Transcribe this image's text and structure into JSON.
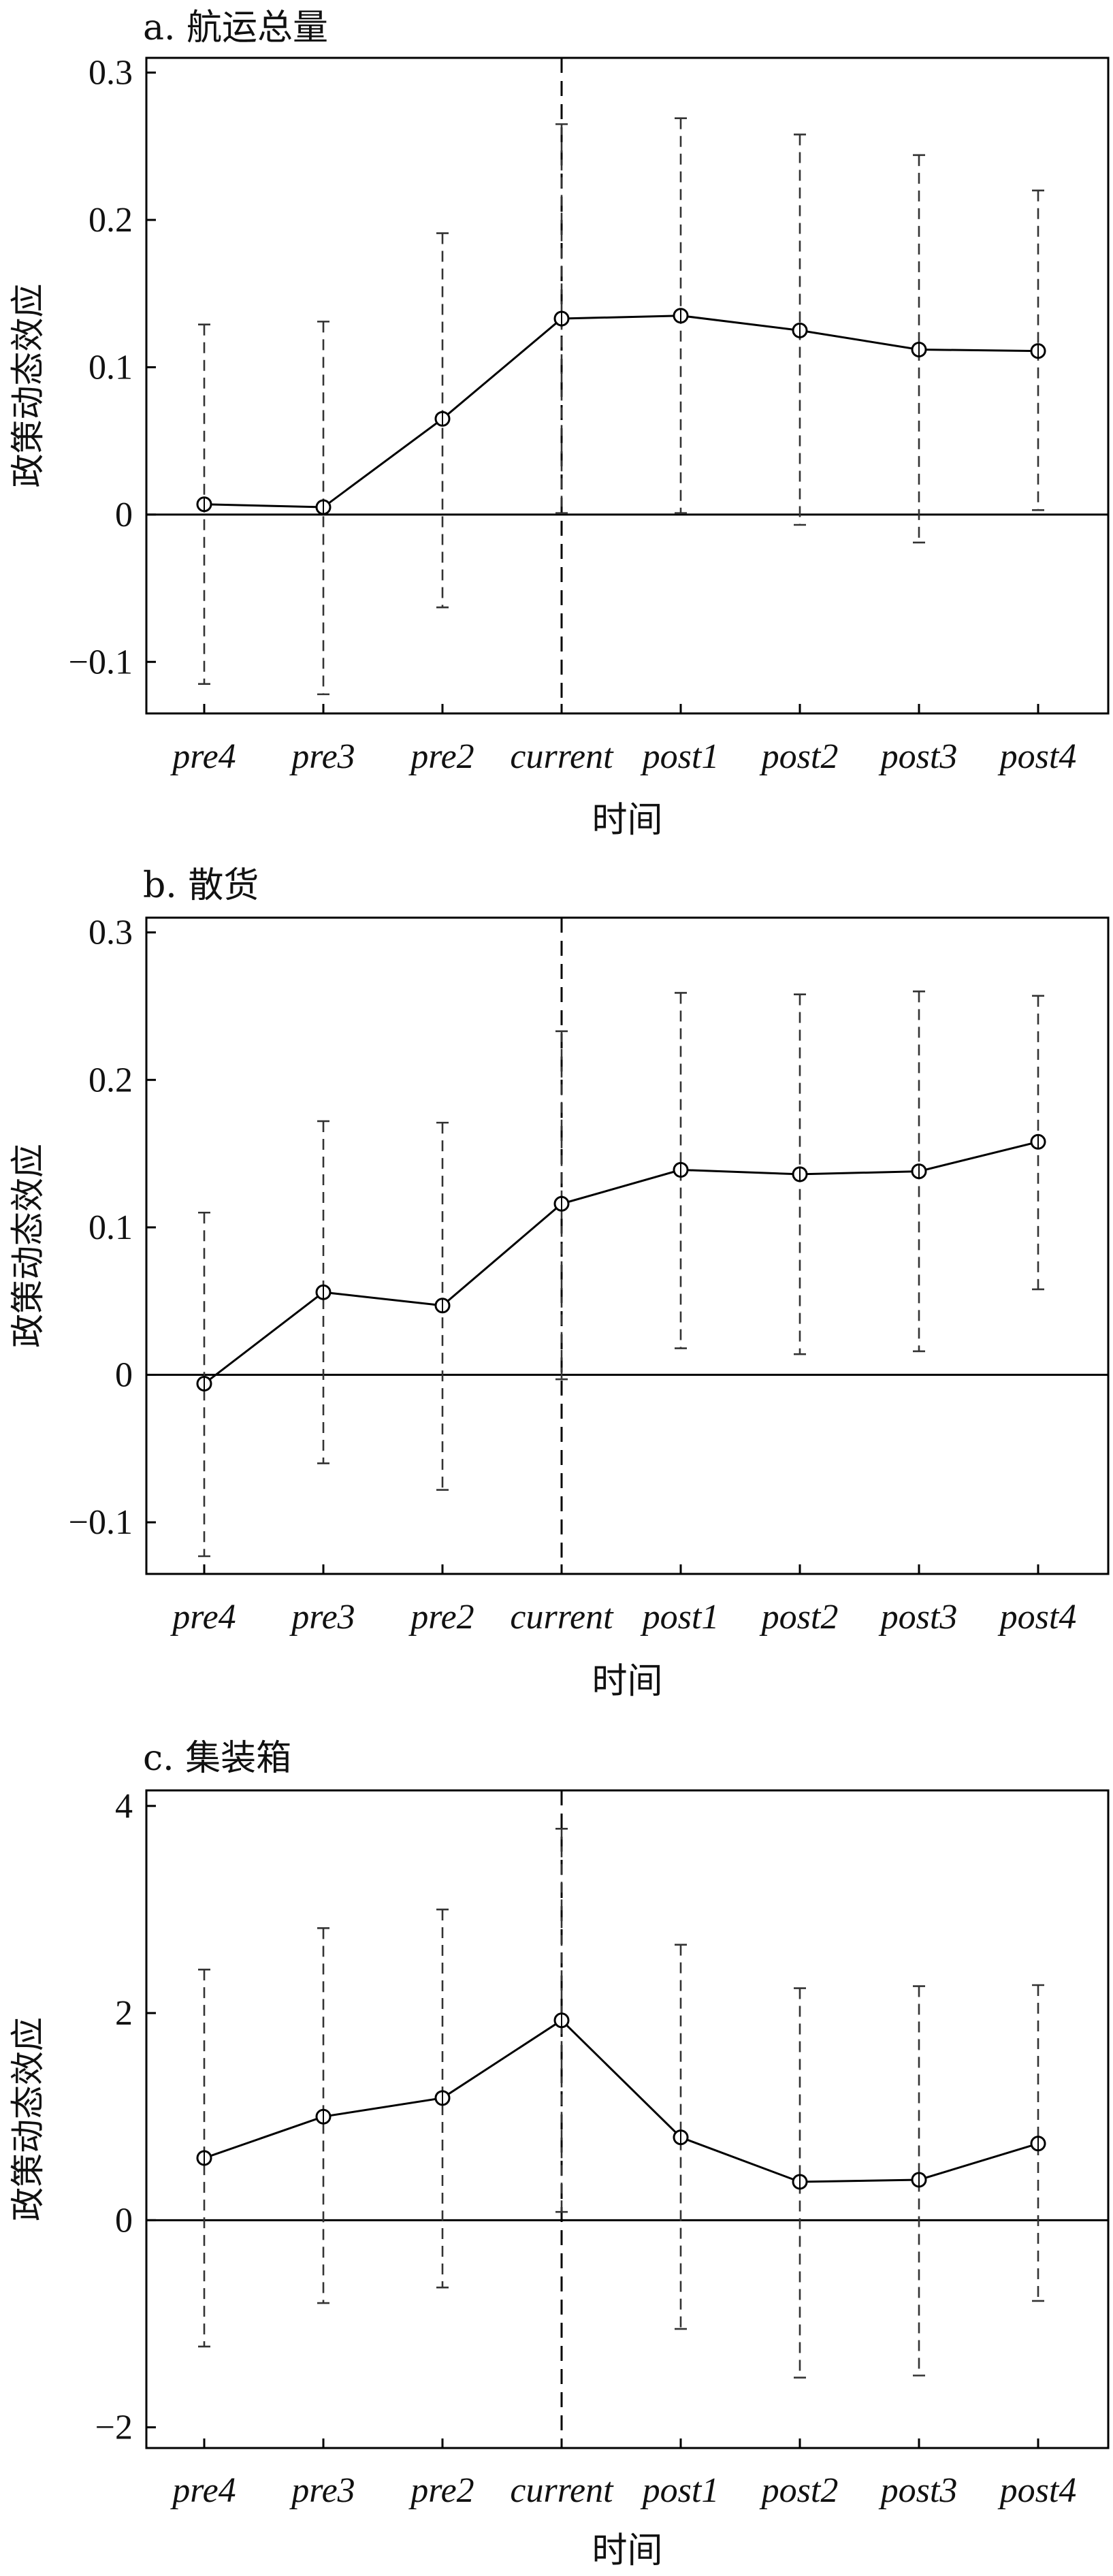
{
  "chart_data": [
    {
      "type": "line",
      "title": "a. 航运总量",
      "xlabel": "时间",
      "ylabel": "政策动态效应",
      "categories": [
        "pre4",
        "pre3",
        "pre2",
        "current",
        "post1",
        "post2",
        "post3",
        "post4"
      ],
      "y_ticks": [
        "0.3",
        "0.2",
        "0.1",
        "0",
        "−0.1"
      ],
      "y_tick_values": [
        0.3,
        0.2,
        0.1,
        0,
        -0.1
      ],
      "ylim": [
        -0.135,
        0.31
      ],
      "vline_at": "current",
      "series": [
        {
          "values": [
            0.007,
            0.005,
            0.065,
            0.133,
            0.135,
            0.125,
            0.112,
            0.111
          ],
          "lower": [
            -0.115,
            -0.122,
            -0.063,
            0.001,
            0.001,
            -0.007,
            -0.019,
            0.003
          ],
          "upper": [
            0.129,
            0.131,
            0.191,
            0.265,
            0.269,
            0.258,
            0.244,
            0.22
          ]
        }
      ]
    },
    {
      "type": "line",
      "title": "b. 散货",
      "xlabel": "时间",
      "ylabel": "政策动态效应",
      "categories": [
        "pre4",
        "pre3",
        "pre2",
        "current",
        "post1",
        "post2",
        "post3",
        "post4"
      ],
      "y_ticks": [
        "0.3",
        "0.2",
        "0.1",
        "0",
        "−0.1"
      ],
      "y_tick_values": [
        0.3,
        0.2,
        0.1,
        0,
        -0.1
      ],
      "ylim": [
        -0.135,
        0.31
      ],
      "vline_at": "current",
      "series": [
        {
          "values": [
            -0.006,
            0.056,
            0.047,
            0.116,
            0.139,
            0.136,
            0.138,
            0.158
          ],
          "lower": [
            -0.123,
            -0.06,
            -0.078,
            -0.003,
            0.018,
            0.014,
            0.016,
            0.058
          ],
          "upper": [
            0.11,
            0.172,
            0.171,
            0.233,
            0.259,
            0.258,
            0.26,
            0.257
          ]
        }
      ]
    },
    {
      "type": "line",
      "title": "c. 集装箱",
      "xlabel": "时间",
      "ylabel": "政策动态效应",
      "categories": [
        "pre4",
        "pre3",
        "pre2",
        "current",
        "post1",
        "post2",
        "post3",
        "post4"
      ],
      "y_ticks": [
        "4",
        "2",
        "0",
        "−2"
      ],
      "y_tick_values": [
        4,
        2,
        0,
        -2
      ],
      "ylim": [
        -2.2,
        4.15
      ],
      "vline_at": "current",
      "series": [
        {
          "values": [
            0.6,
            1.0,
            1.18,
            1.93,
            0.8,
            0.37,
            0.39,
            0.74
          ],
          "lower": [
            -1.22,
            -0.8,
            -0.65,
            0.08,
            -1.05,
            -1.52,
            -1.5,
            -0.78
          ],
          "upper": [
            2.42,
            2.82,
            3.0,
            3.78,
            2.66,
            2.24,
            2.26,
            2.27
          ]
        }
      ]
    }
  ]
}
